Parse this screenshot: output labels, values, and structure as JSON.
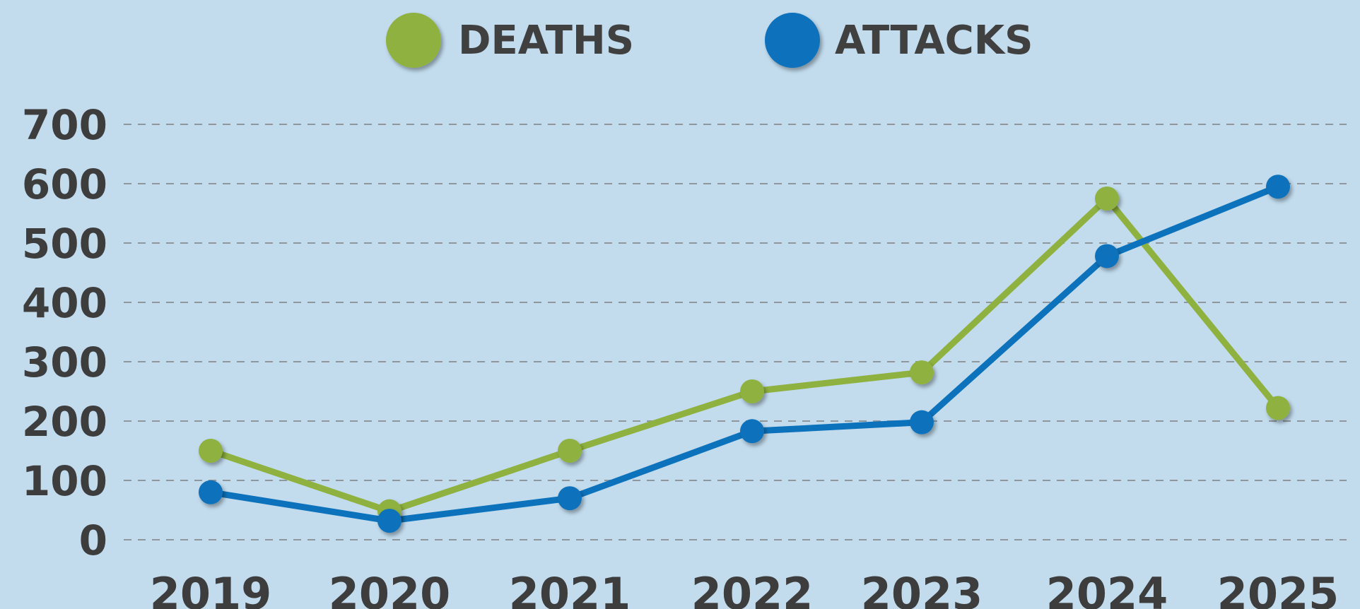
{
  "chart_data": {
    "type": "line",
    "title": "",
    "xlabel": "",
    "ylabel": "",
    "categories": [
      "2019",
      "2020",
      "2021",
      "2022",
      "2023",
      "2024",
      "2025"
    ],
    "ylim": [
      0,
      700
    ],
    "yticks": [
      "0",
      "100",
      "200",
      "300",
      "400",
      "500",
      "600",
      "700"
    ],
    "grid": true,
    "legend_position": "top-center",
    "series": [
      {
        "name": "DEATHS",
        "color": "#8fb13f",
        "values": [
          150,
          48,
          150,
          250,
          282,
          575,
          222
        ]
      },
      {
        "name": "ATTACKS",
        "color": "#0c72bb",
        "values": [
          80,
          32,
          70,
          183,
          198,
          478,
          595
        ]
      }
    ]
  }
}
